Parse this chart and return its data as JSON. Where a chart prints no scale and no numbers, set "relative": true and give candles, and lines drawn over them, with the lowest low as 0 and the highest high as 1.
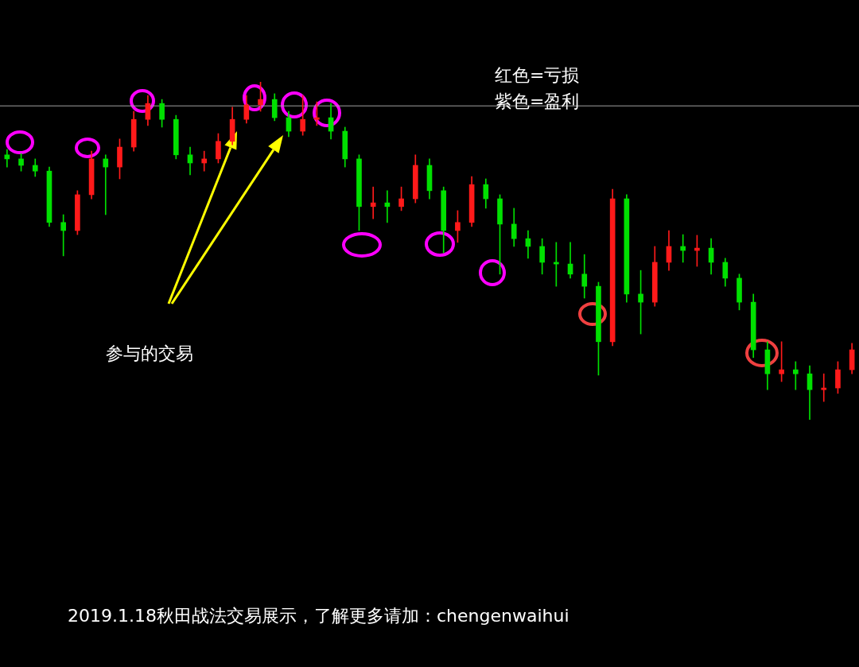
{
  "chart_data": {
    "type": "candlestick",
    "title": "2019.1.18秋田战法交易展示，了解更多请加：chengenwaihui",
    "relative": true,
    "annotations": [
      "红色=亏损",
      "紫色=盈利",
      "参与的交易"
    ],
    "categories": [
      null,
      null,
      null,
      null,
      null,
      null,
      null,
      null,
      null,
      null,
      null,
      null,
      null,
      null,
      null,
      null,
      null,
      null,
      null,
      null,
      null,
      null,
      null,
      null,
      null,
      null,
      null,
      null,
      null,
      null,
      null,
      null,
      null,
      null,
      null,
      null,
      null,
      null,
      null,
      null,
      null,
      null,
      null,
      null,
      null,
      null,
      null,
      null,
      null,
      null,
      null,
      null,
      null,
      null,
      null,
      null,
      null,
      null,
      null,
      null,
      null
    ],
    "ohlc": [
      [
        0.784,
        0.8,
        0.748,
        0.772
      ],
      [
        0.772,
        0.788,
        0.736,
        0.753
      ],
      [
        0.753,
        0.772,
        0.72,
        0.736
      ],
      [
        0.736,
        0.748,
        0.572,
        0.584
      ],
      [
        0.584,
        0.607,
        0.485,
        0.56
      ],
      [
        0.56,
        0.678,
        0.548,
        0.666
      ],
      [
        0.666,
        0.795,
        0.654,
        0.772
      ],
      [
        0.772,
        0.784,
        0.607,
        0.748
      ],
      [
        0.748,
        0.831,
        0.713,
        0.807
      ],
      [
        0.807,
        0.913,
        0.795,
        0.889
      ],
      [
        0.889,
        0.96,
        0.871,
        0.936
      ],
      [
        0.936,
        0.948,
        0.866,
        0.889
      ],
      [
        0.889,
        0.901,
        0.772,
        0.784
      ],
      [
        0.784,
        0.807,
        0.725,
        0.76
      ],
      [
        0.76,
        0.795,
        0.736,
        0.772
      ],
      [
        0.772,
        0.847,
        0.76,
        0.824
      ],
      [
        0.824,
        0.925,
        0.814,
        0.889
      ],
      [
        0.889,
        0.96,
        0.878,
        0.932
      ],
      [
        0.932,
        1,
        0.913,
        0.948
      ],
      [
        0.948,
        0.965,
        0.885,
        0.894
      ],
      [
        0.894,
        0.913,
        0.838,
        0.854
      ],
      [
        0.854,
        0.96,
        0.842,
        0.889
      ],
      [
        0.889,
        0.941,
        0.871,
        0.894
      ],
      [
        0.894,
        0.936,
        0.831,
        0.854
      ],
      [
        0.854,
        0.866,
        0.748,
        0.772
      ],
      [
        0.772,
        0.784,
        0.56,
        0.631
      ],
      [
        0.631,
        0.689,
        0.595,
        0.642
      ],
      [
        0.642,
        0.678,
        0.584,
        0.631
      ],
      [
        0.631,
        0.689,
        0.619,
        0.654
      ],
      [
        0.654,
        0.784,
        0.642,
        0.753
      ],
      [
        0.753,
        0.772,
        0.654,
        0.678
      ],
      [
        0.678,
        0.689,
        0.494,
        0.56
      ],
      [
        0.56,
        0.619,
        0.525,
        0.584
      ],
      [
        0.584,
        0.72,
        0.572,
        0.696
      ],
      [
        0.696,
        0.713,
        0.626,
        0.654
      ],
      [
        0.654,
        0.666,
        0.431,
        0.579
      ],
      [
        0.579,
        0.626,
        0.513,
        0.536
      ],
      [
        0.536,
        0.56,
        0.478,
        0.513
      ],
      [
        0.513,
        0.536,
        0.431,
        0.466
      ],
      [
        0.466,
        0.525,
        0.395,
        0.461
      ],
      [
        0.461,
        0.525,
        0.419,
        0.431
      ],
      [
        0.431,
        0.489,
        0.36,
        0.395
      ],
      [
        0.395,
        0.407,
        0.132,
        0.231
      ],
      [
        0.231,
        0.682,
        0.219,
        0.654
      ],
      [
        0.654,
        0.666,
        0.348,
        0.372
      ],
      [
        0.372,
        0.442,
        0.254,
        0.348
      ],
      [
        0.348,
        0.513,
        0.336,
        0.466
      ],
      [
        0.466,
        0.56,
        0.442,
        0.513
      ],
      [
        0.513,
        0.548,
        0.466,
        0.501
      ],
      [
        0.501,
        0.546,
        0.454,
        0.508
      ],
      [
        0.508,
        0.536,
        0.431,
        0.466
      ],
      [
        0.466,
        0.478,
        0.395,
        0.419
      ],
      [
        0.419,
        0.431,
        0.325,
        0.348
      ],
      [
        0.348,
        0.372,
        0.184,
        0.207
      ],
      [
        0.207,
        0.231,
        0.089,
        0.136
      ],
      [
        0.136,
        0.231,
        0.113,
        0.148
      ],
      [
        0.148,
        0.172,
        0.089,
        0.136
      ],
      [
        0.136,
        0.16,
        0,
        0.089
      ],
      [
        0.089,
        0.136,
        0.054,
        0.094
      ],
      [
        0.094,
        0.172,
        0.078,
        0.148
      ],
      [
        0.148,
        0.226,
        0.136,
        0.207
      ]
    ],
    "colors": [
      "#00e000",
      "#00e000",
      "#00e000",
      "#00e000",
      "#00e000",
      "#ff1a1a",
      "#ff1a1a",
      "#00e000",
      "#ff1a1a",
      "#ff1a1a",
      "#ff1a1a",
      "#00e000",
      "#00e000",
      "#00e000",
      "#ff1a1a",
      "#ff1a1a",
      "#ff1a1a",
      "#ff1a1a",
      "#ff1a1a",
      "#00e000",
      "#00e000",
      "#ff1a1a",
      "#ff1a1a",
      "#00e000",
      "#00e000",
      "#00e000",
      "#ff1a1a",
      "#00e000",
      "#ff1a1a",
      "#ff1a1a",
      "#00e000",
      "#00e000",
      "#ff1a1a",
      "#ff1a1a",
      "#00e000",
      "#00e000",
      "#00e000",
      "#00e000",
      "#00e000",
      "#00e000",
      "#00e000",
      "#00e000",
      "#00e000",
      "#ff1a1a",
      "#00e000",
      "#00e000",
      "#ff1a1a",
      "#ff1a1a",
      "#00e000",
      "#ff1a1a",
      "#00e000",
      "#00e000",
      "#00e000",
      "#00e000",
      "#00e000",
      "#ff1a1a",
      "#00e000",
      "#00e000",
      "#ff1a1a",
      "#ff1a1a",
      "#ff1a1a"
    ],
    "ref_lines": [
      {
        "axis": "y",
        "value": 0.929,
        "color": "#a0a0a0"
      }
    ]
  }
}
